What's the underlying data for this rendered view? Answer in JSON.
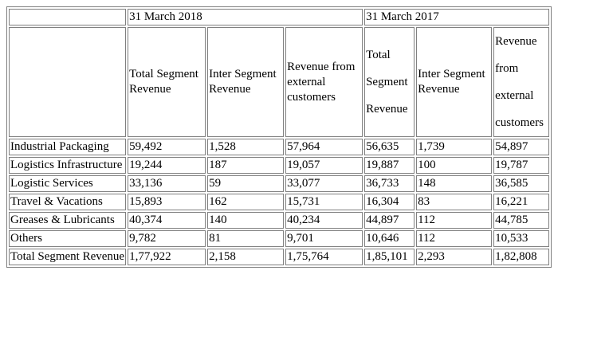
{
  "periods": [
    "31 March 2018",
    "31 March 2017"
  ],
  "headers_2018": [
    "Total Segment Revenue",
    "Inter Segment Revenue",
    "Revenue from external customers"
  ],
  "headers_2017": {
    "total": [
      "Total",
      "Segment",
      "Revenue"
    ],
    "inter": "Inter Segment Revenue",
    "external": [
      "Revenue",
      "from",
      "external",
      "customers"
    ]
  },
  "rows": [
    {
      "label": "Industrial Packaging",
      "values": [
        "59,492",
        "1,528",
        "57,964",
        "56,635",
        "1,739",
        "54,897"
      ]
    },
    {
      "label": "Logistics Infrastructure",
      "values": [
        "19,244",
        "187",
        "19,057",
        "19,887",
        "100",
        "19,787"
      ]
    },
    {
      "label": "Logistic Services",
      "values": [
        "33,136",
        "59",
        "33,077",
        "36,733",
        "148",
        "36,585"
      ]
    },
    {
      "label": "Travel & Vacations",
      "values": [
        "15,893",
        "162",
        "15,731",
        "16,304",
        "83",
        "16,221"
      ]
    },
    {
      "label": "Greases & Lubricants",
      "values": [
        "40,374",
        "140",
        "40,234",
        "44,897",
        "112",
        "44,785"
      ]
    },
    {
      "label": "Others",
      "values": [
        "9,782",
        "81",
        "9,701",
        "10,646",
        "112",
        "10,533"
      ]
    },
    {
      "label": "Total Segment Revenue",
      "values": [
        "1,77,922",
        "2,158",
        "1,75,764",
        "1,85,101",
        "2,293",
        "1,82,808"
      ]
    }
  ]
}
